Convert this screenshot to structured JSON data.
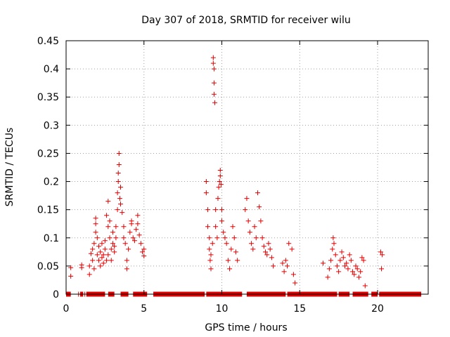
{
  "chart_data": {
    "type": "scatter",
    "title": "Day 307 of 2018, SRMTID for receiver wilu",
    "xlabel": "GPS time / hours",
    "ylabel": "SRMTID / TECUs",
    "xlim": [
      0,
      23.25
    ],
    "ylim": [
      0,
      0.45
    ],
    "xticks": [
      0,
      5,
      10,
      15,
      20
    ],
    "xtick_labels": [
      "0",
      "5",
      "10",
      "15",
      "20"
    ],
    "yticks": [
      0,
      0.05,
      0.1,
      0.15,
      0.2,
      0.25,
      0.3,
      0.35,
      0.4,
      0.45
    ],
    "ytick_labels": [
      "0",
      "0.05",
      "0.1",
      "0.15",
      "0.2",
      "0.25",
      "0.3",
      "0.35",
      "0.4",
      "0.45"
    ],
    "grid": true,
    "marker": "+",
    "marker_color": "#e00000",
    "series": [
      {
        "name": "SRMTID",
        "points": [
          [
            0.2,
            0.0
          ],
          [
            0.3,
            0.047
          ],
          [
            0.3,
            0.032
          ],
          [
            0.8,
            0.0
          ],
          [
            1.0,
            0.0
          ],
          [
            1.0,
            0.047
          ],
          [
            1.0,
            0.052
          ],
          [
            1.2,
            0.0
          ],
          [
            1.4,
            0.0
          ],
          [
            1.5,
            0.035
          ],
          [
            1.5,
            0.05
          ],
          [
            1.6,
            0.072
          ],
          [
            1.7,
            0.06
          ],
          [
            1.7,
            0.08
          ],
          [
            1.8,
            0.09
          ],
          [
            1.8,
            0.045
          ],
          [
            1.9,
            0.11
          ],
          [
            1.9,
            0.125
          ],
          [
            1.9,
            0.135
          ],
          [
            2.0,
            0.07
          ],
          [
            2.0,
            0.1
          ],
          [
            2.1,
            0.06
          ],
          [
            2.1,
            0.085
          ],
          [
            2.2,
            0.05
          ],
          [
            2.2,
            0.075
          ],
          [
            2.3,
            0.065
          ],
          [
            2.3,
            0.09
          ],
          [
            2.4,
            0.07
          ],
          [
            2.4,
            0.055
          ],
          [
            2.5,
            0.08
          ],
          [
            2.5,
            0.095
          ],
          [
            2.6,
            0.14
          ],
          [
            2.6,
            0.06
          ],
          [
            2.7,
            0.165
          ],
          [
            2.7,
            0.12
          ],
          [
            2.7,
            0.07
          ],
          [
            2.8,
            0.13
          ],
          [
            2.8,
            0.1
          ],
          [
            2.9,
            0.08
          ],
          [
            2.9,
            0.06
          ],
          [
            3.0,
            0.09
          ],
          [
            3.0,
            0.11
          ],
          [
            3.1,
            0.085
          ],
          [
            3.1,
            0.075
          ],
          [
            3.2,
            0.1
          ],
          [
            3.2,
            0.12
          ],
          [
            3.3,
            0.15
          ],
          [
            3.3,
            0.18
          ],
          [
            3.35,
            0.2
          ],
          [
            3.35,
            0.215
          ],
          [
            3.4,
            0.23
          ],
          [
            3.4,
            0.25
          ],
          [
            3.45,
            0.17
          ],
          [
            3.5,
            0.19
          ],
          [
            3.5,
            0.16
          ],
          [
            3.6,
            0.145
          ],
          [
            3.7,
            0.12
          ],
          [
            3.7,
            0.1
          ],
          [
            3.8,
            0.09
          ],
          [
            3.9,
            0.06
          ],
          [
            3.9,
            0.045
          ],
          [
            4.0,
            0.08
          ],
          [
            4.1,
            0.11
          ],
          [
            4.2,
            0.125
          ],
          [
            4.2,
            0.13
          ],
          [
            4.3,
            0.1
          ],
          [
            4.4,
            0.095
          ],
          [
            4.5,
            0.115
          ],
          [
            4.6,
            0.14
          ],
          [
            4.6,
            0.125
          ],
          [
            4.7,
            0.105
          ],
          [
            4.8,
            0.09
          ],
          [
            4.9,
            0.075
          ],
          [
            5.0,
            0.08
          ],
          [
            5.0,
            0.068
          ],
          [
            9.0,
            0.18
          ],
          [
            9.0,
            0.2
          ],
          [
            9.1,
            0.15
          ],
          [
            9.1,
            0.12
          ],
          [
            9.2,
            0.1
          ],
          [
            9.2,
            0.08
          ],
          [
            9.25,
            0.06
          ],
          [
            9.3,
            0.045
          ],
          [
            9.3,
            0.07
          ],
          [
            9.4,
            0.09
          ],
          [
            9.45,
            0.42
          ],
          [
            9.45,
            0.41
          ],
          [
            9.5,
            0.4
          ],
          [
            9.5,
            0.375
          ],
          [
            9.5,
            0.355
          ],
          [
            9.55,
            0.34
          ],
          [
            9.6,
            0.15
          ],
          [
            9.6,
            0.12
          ],
          [
            9.7,
            0.1
          ],
          [
            9.75,
            0.17
          ],
          [
            9.8,
            0.19
          ],
          [
            9.85,
            0.2
          ],
          [
            9.9,
            0.21
          ],
          [
            9.9,
            0.22
          ],
          [
            9.95,
            0.195
          ],
          [
            10.0,
            0.15
          ],
          [
            10.0,
            0.13
          ],
          [
            10.1,
            0.11
          ],
          [
            10.2,
            0.1
          ],
          [
            10.3,
            0.09
          ],
          [
            10.4,
            0.06
          ],
          [
            10.5,
            0.045
          ],
          [
            10.6,
            0.08
          ],
          [
            10.7,
            0.12
          ],
          [
            10.8,
            0.1
          ],
          [
            10.9,
            0.075
          ],
          [
            11.0,
            0.06
          ],
          [
            11.5,
            0.15
          ],
          [
            11.6,
            0.17
          ],
          [
            11.7,
            0.13
          ],
          [
            11.8,
            0.11
          ],
          [
            11.9,
            0.09
          ],
          [
            12.0,
            0.08
          ],
          [
            12.1,
            0.12
          ],
          [
            12.2,
            0.1
          ],
          [
            12.3,
            0.18
          ],
          [
            12.4,
            0.155
          ],
          [
            12.5,
            0.13
          ],
          [
            12.6,
            0.1
          ],
          [
            12.7,
            0.085
          ],
          [
            12.8,
            0.075
          ],
          [
            12.9,
            0.07
          ],
          [
            13.0,
            0.09
          ],
          [
            13.1,
            0.08
          ],
          [
            13.2,
            0.065
          ],
          [
            13.3,
            0.05
          ],
          [
            13.9,
            0.055
          ],
          [
            14.0,
            0.04
          ],
          [
            14.1,
            0.06
          ],
          [
            14.2,
            0.05
          ],
          [
            14.3,
            0.09
          ],
          [
            14.5,
            0.08
          ],
          [
            14.6,
            0.035
          ],
          [
            14.7,
            0.02
          ],
          [
            16.5,
            0.055
          ],
          [
            16.8,
            0.03
          ],
          [
            16.9,
            0.045
          ],
          [
            17.0,
            0.06
          ],
          [
            17.1,
            0.08
          ],
          [
            17.15,
            0.1
          ],
          [
            17.2,
            0.09
          ],
          [
            17.3,
            0.07
          ],
          [
            17.4,
            0.05
          ],
          [
            17.5,
            0.04
          ],
          [
            17.6,
            0.06
          ],
          [
            17.7,
            0.075
          ],
          [
            17.8,
            0.065
          ],
          [
            17.9,
            0.05
          ],
          [
            18.0,
            0.055
          ],
          [
            18.1,
            0.045
          ],
          [
            18.2,
            0.07
          ],
          [
            18.3,
            0.06
          ],
          [
            18.4,
            0.04
          ],
          [
            18.5,
            0.035
          ],
          [
            18.6,
            0.05
          ],
          [
            18.7,
            0.045
          ],
          [
            18.8,
            0.03
          ],
          [
            18.9,
            0.04
          ],
          [
            19.0,
            0.065
          ],
          [
            19.1,
            0.06
          ],
          [
            19.2,
            0.015
          ],
          [
            19.3,
            0.0
          ],
          [
            20.2,
            0.075
          ],
          [
            20.25,
            0.045
          ],
          [
            20.3,
            0.07
          ]
        ]
      }
    ],
    "zero_segments_hours": [
      [
        0.0,
        0.3
      ],
      [
        0.9,
        1.1
      ],
      [
        1.3,
        2.5
      ],
      [
        2.7,
        3.1
      ],
      [
        3.5,
        4.0
      ],
      [
        4.3,
        5.2
      ],
      [
        5.6,
        8.9
      ],
      [
        9.0,
        11.3
      ],
      [
        11.6,
        14.1
      ],
      [
        14.2,
        17.4
      ],
      [
        17.5,
        18.2
      ],
      [
        18.4,
        19.4
      ],
      [
        19.6,
        20.0
      ],
      [
        20.1,
        22.8
      ]
    ]
  }
}
